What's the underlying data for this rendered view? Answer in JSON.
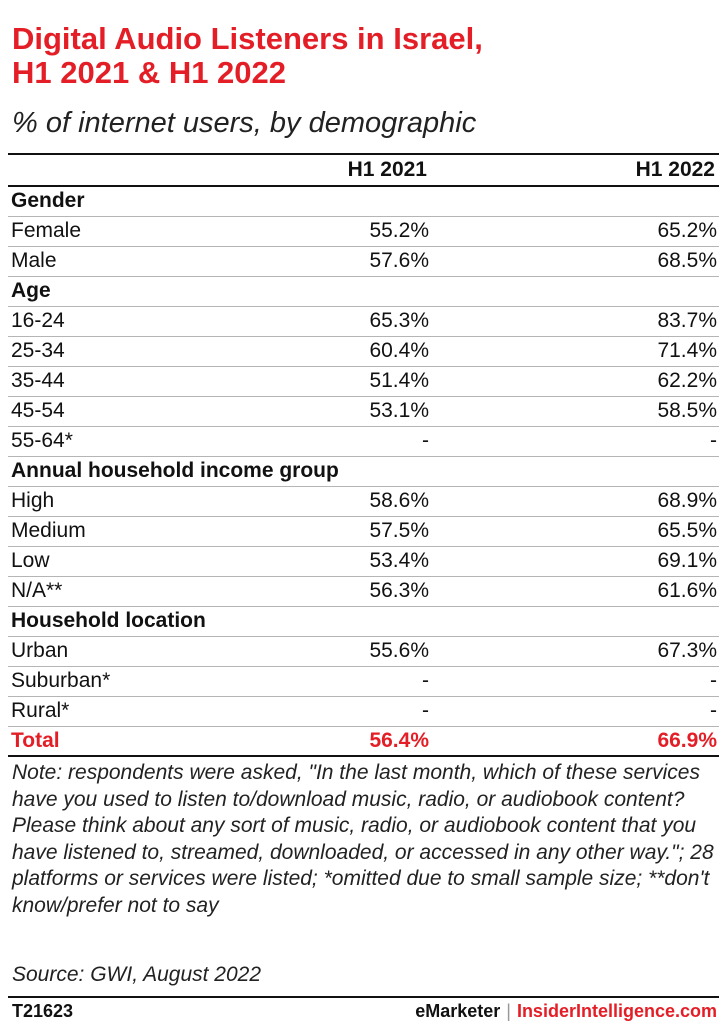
{
  "title_lines": [
    "Digital Audio Listeners in Israel,",
    "H1 2021 & H1 2022"
  ],
  "subtitle": "% of internet users, by demographic",
  "chart_data": {
    "type": "table",
    "columns": [
      "",
      "H1 2021",
      "H1 2022"
    ],
    "rows": [
      {
        "label": "Gender",
        "group": true
      },
      {
        "label": "Female",
        "values": [
          "55.2%",
          "65.2%"
        ]
      },
      {
        "label": "Male",
        "values": [
          "57.6%",
          "68.5%"
        ]
      },
      {
        "label": "Age",
        "group": true
      },
      {
        "label": "16-24",
        "values": [
          "65.3%",
          "83.7%"
        ]
      },
      {
        "label": "25-34",
        "values": [
          "60.4%",
          "71.4%"
        ]
      },
      {
        "label": "35-44",
        "values": [
          "51.4%",
          "62.2%"
        ]
      },
      {
        "label": "45-54",
        "values": [
          "53.1%",
          "58.5%"
        ]
      },
      {
        "label": "55-64*",
        "values": [
          "-",
          "-"
        ]
      },
      {
        "label": "Annual household income group",
        "group": true
      },
      {
        "label": "High",
        "values": [
          "58.6%",
          "68.9%"
        ]
      },
      {
        "label": "Medium",
        "values": [
          "57.5%",
          "65.5%"
        ]
      },
      {
        "label": "Low",
        "values": [
          "53.4%",
          "69.1%"
        ]
      },
      {
        "label": "N/A**",
        "values": [
          "56.3%",
          "61.6%"
        ]
      },
      {
        "label": "Household location",
        "group": true
      },
      {
        "label": "Urban",
        "values": [
          "55.6%",
          "67.3%"
        ]
      },
      {
        "label": "Suburban*",
        "values": [
          "-",
          "-"
        ]
      },
      {
        "label": "Rural*",
        "values": [
          "-",
          "-"
        ]
      },
      {
        "label": "Total",
        "values": [
          "56.4%",
          "66.9%"
        ],
        "total": true
      }
    ]
  },
  "note": "Note: respondents were asked, \"In the last month, which of these services have you used to listen to/download music, radio, or audiobook content? Please think about any sort of music, radio, or audiobook content that you have listened to, streamed, downloaded, or accessed in any other way.\"; 28 platforms or services were listed; *omitted due to small sample size; **don't know/prefer not to say",
  "source": "Source: GWI, August 2022",
  "footer": {
    "chart_id": "T21623",
    "brand_left": "eMarketer",
    "separator": "|",
    "brand_right": "InsiderIntelligence.com"
  },
  "colors": {
    "accent": "#e41e26",
    "text": "#111111",
    "rule": "#b5b5b5"
  }
}
